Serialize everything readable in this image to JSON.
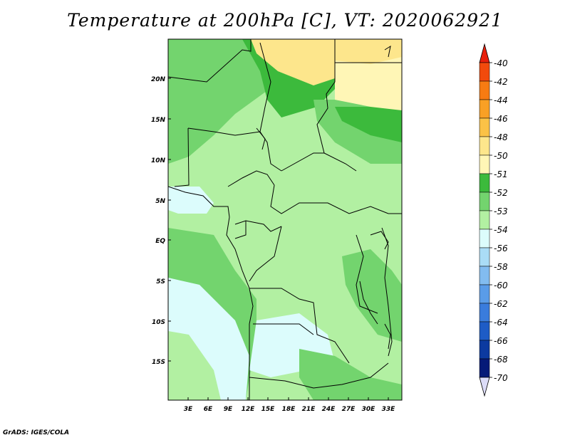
{
  "title": "Temperature at 200hPa [C], VT: 2020062921",
  "footer": "GrADS: IGES/COLA",
  "axes": {
    "lat_labels": [
      "20N",
      "15N",
      "10N",
      "5N",
      "EQ",
      "5S",
      "10S",
      "15S"
    ],
    "lon_labels": [
      "3E",
      "6E",
      "9E",
      "12E",
      "15E",
      "18E",
      "21E",
      "24E",
      "27E",
      "30E",
      "33E"
    ]
  },
  "colorbar": {
    "labels": [
      "-40",
      "-42",
      "-44",
      "-46",
      "-48",
      "-50",
      "-51",
      "-52",
      "-53",
      "-54",
      "-56",
      "-58",
      "-60",
      "-62",
      "-64",
      "-66",
      "-68",
      "-70"
    ],
    "colors": [
      "#e8200c",
      "#f24a0c",
      "#f77b12",
      "#f9a025",
      "#fbc246",
      "#fde68c",
      "#fff6b6",
      "#3cba3c",
      "#73d46e",
      "#b2f0a2",
      "#dcfcfc",
      "#aadcf6",
      "#82bcf0",
      "#5a9ce8",
      "#3a7cdc",
      "#1e5cc6",
      "#0c3aa0",
      "#061a78",
      "#dcdcf8"
    ]
  },
  "colors": {
    "cold_ocean": "#dcfcfc",
    "light_green": "#b2f0a2",
    "mid_green": "#73d46e",
    "dark_green": "#3cba3c",
    "yellow": "#fde68c",
    "pale_yellow": "#fff6b6"
  }
}
